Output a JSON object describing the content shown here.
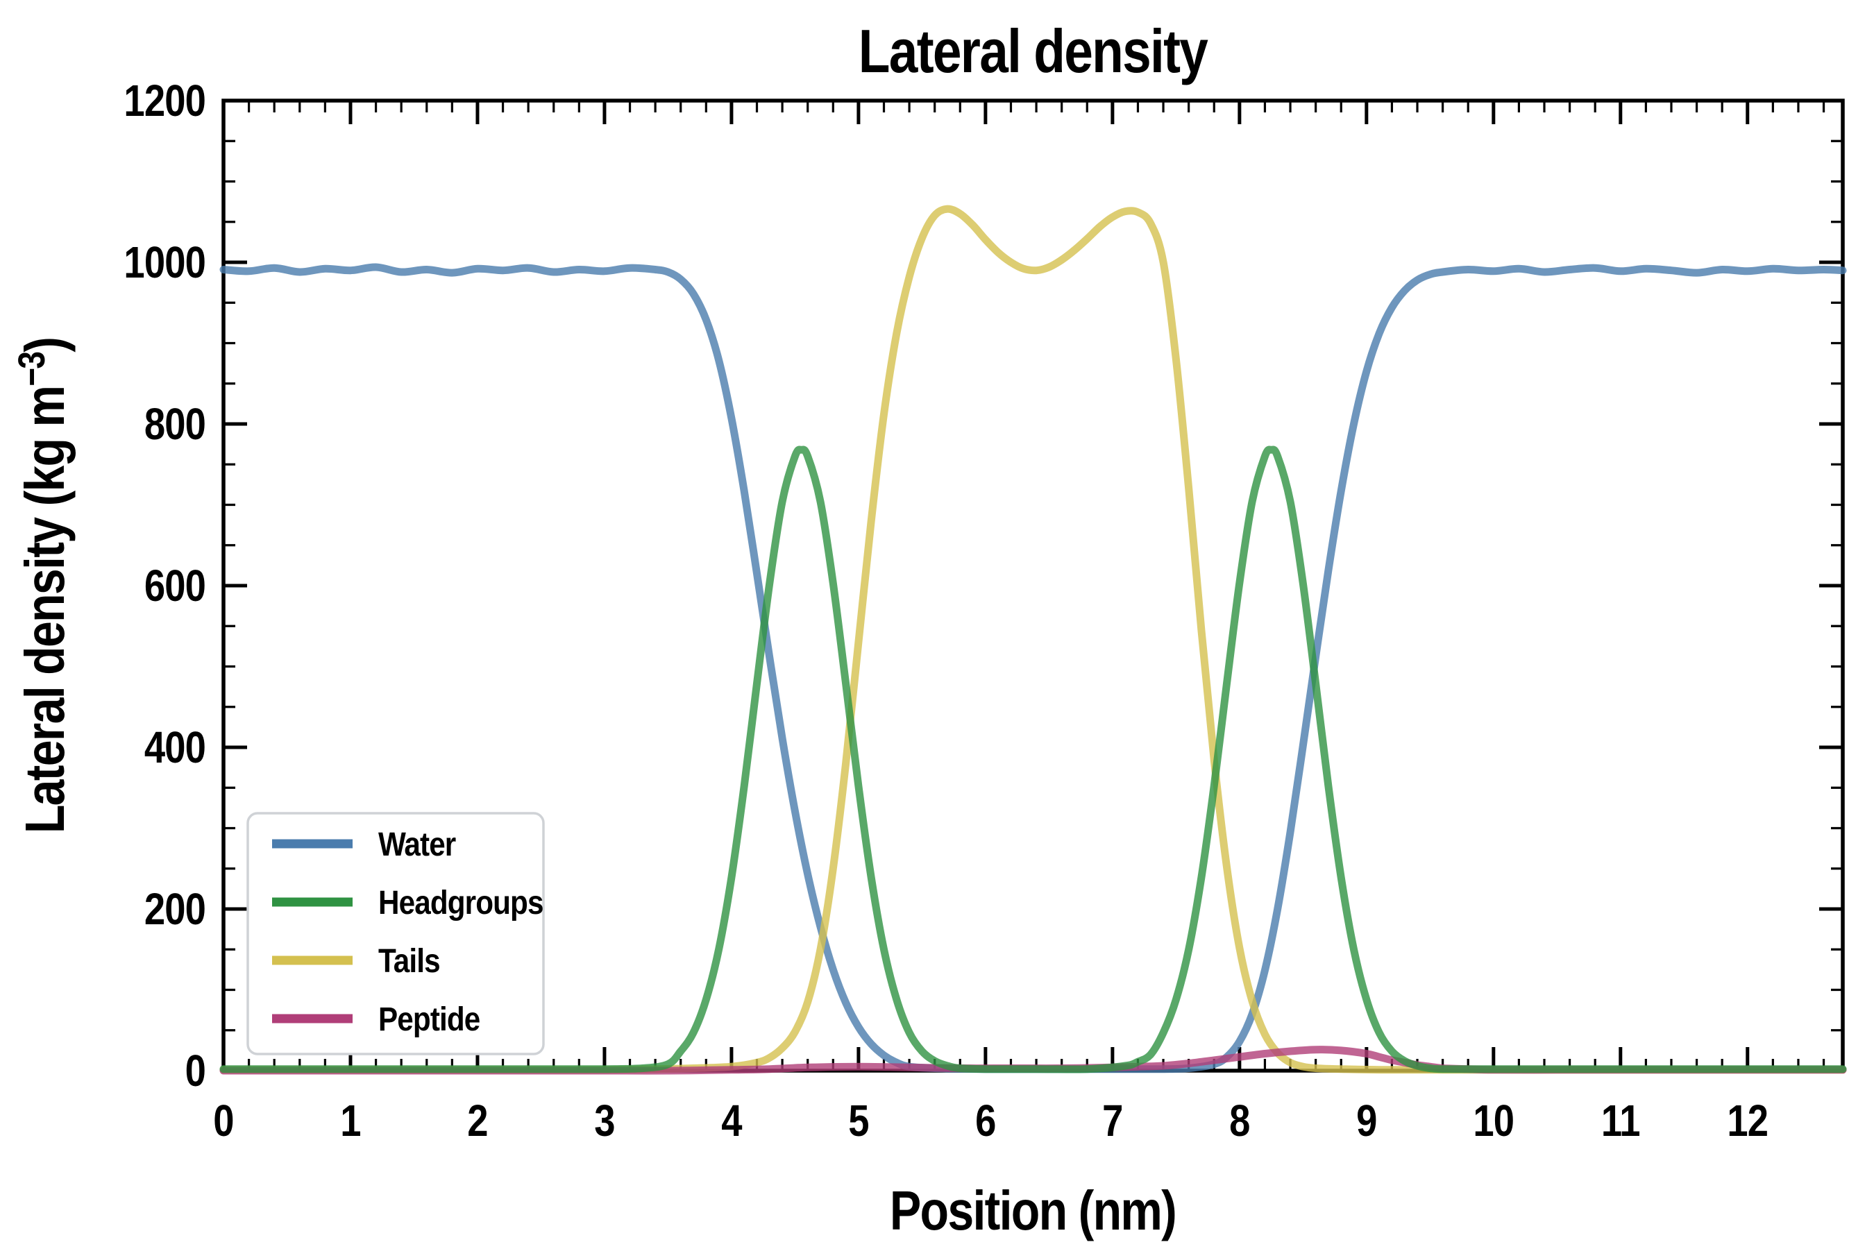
{
  "figure": {
    "background": "#ffffff",
    "frame_color": "#000000",
    "title": "Lateral density"
  },
  "legend": {
    "position": "lower left",
    "border_color": "#cfd2d6",
    "background": "#ffffff",
    "entries": [
      "Water",
      "Headgroups",
      "Tails",
      "Peptide"
    ]
  },
  "chart_data": {
    "type": "line",
    "title": "Lateral density",
    "xlabel": "Position (nm)",
    "ylabel": "Lateral density (kg m⁻³)",
    "ylabel_rich": {
      "pre": "Lateral density (kg m",
      "sup": "−3",
      "post": ")"
    },
    "xlim": [
      0,
      12.75
    ],
    "ylim": [
      0,
      1200
    ],
    "x_major_ticks": [
      0,
      1,
      2,
      3,
      4,
      5,
      6,
      7,
      8,
      9,
      10,
      11,
      12
    ],
    "x_minor_step": 0.2,
    "y_major_ticks": [
      0,
      200,
      400,
      600,
      800,
      1000,
      1200
    ],
    "y_minor_step": 50,
    "grid": false,
    "ticks_mirrored_all_spines": true,
    "line_opacity": 0.8,
    "draw_order": [
      "water",
      "tails",
      "peptide",
      "headgroups"
    ],
    "series": [
      {
        "id": "water",
        "name": "Water",
        "color": "#4a7cad",
        "points": [
          [
            0,
            991
          ],
          [
            0.2,
            989
          ],
          [
            0.4,
            993
          ],
          [
            0.6,
            988
          ],
          [
            0.8,
            992
          ],
          [
            1,
            990
          ],
          [
            1.2,
            994
          ],
          [
            1.4,
            988
          ],
          [
            1.6,
            991
          ],
          [
            1.8,
            987
          ],
          [
            2,
            992
          ],
          [
            2.2,
            990
          ],
          [
            2.4,
            993
          ],
          [
            2.6,
            988
          ],
          [
            2.8,
            991
          ],
          [
            3,
            989
          ],
          [
            3.2,
            993
          ],
          [
            3.4,
            991
          ],
          [
            3.5,
            988
          ],
          [
            3.6,
            979
          ],
          [
            3.7,
            961
          ],
          [
            3.8,
            929
          ],
          [
            3.9,
            879
          ],
          [
            4,
            807
          ],
          [
            4.1,
            717
          ],
          [
            4.2,
            615
          ],
          [
            4.3,
            511
          ],
          [
            4.4,
            411
          ],
          [
            4.5,
            321
          ],
          [
            4.6,
            243
          ],
          [
            4.7,
            178
          ],
          [
            4.8,
            125
          ],
          [
            4.9,
            84
          ],
          [
            5,
            54
          ],
          [
            5.1,
            33
          ],
          [
            5.2,
            19
          ],
          [
            5.3,
            10
          ],
          [
            5.4,
            5
          ],
          [
            5.6,
            3
          ],
          [
            6,
            2
          ],
          [
            6.5,
            2
          ],
          [
            7,
            2
          ],
          [
            7.4,
            2
          ],
          [
            7.6,
            3
          ],
          [
            7.8,
            8
          ],
          [
            7.9,
            17
          ],
          [
            8,
            36
          ],
          [
            8.1,
            70
          ],
          [
            8.2,
            124
          ],
          [
            8.3,
            200
          ],
          [
            8.4,
            295
          ],
          [
            8.5,
            402
          ],
          [
            8.6,
            512
          ],
          [
            8.7,
            619
          ],
          [
            8.8,
            717
          ],
          [
            8.9,
            800
          ],
          [
            9,
            865
          ],
          [
            9.1,
            912
          ],
          [
            9.2,
            944
          ],
          [
            9.3,
            965
          ],
          [
            9.4,
            978
          ],
          [
            9.5,
            985
          ],
          [
            9.6,
            988
          ],
          [
            9.8,
            991
          ],
          [
            10,
            989
          ],
          [
            10.2,
            992
          ],
          [
            10.4,
            988
          ],
          [
            10.6,
            991
          ],
          [
            10.8,
            993
          ],
          [
            11,
            989
          ],
          [
            11.2,
            992
          ],
          [
            11.4,
            990
          ],
          [
            11.6,
            987
          ],
          [
            11.8,
            991
          ],
          [
            12,
            989
          ],
          [
            12.2,
            992
          ],
          [
            12.4,
            990
          ],
          [
            12.6,
            991
          ],
          [
            12.75,
            990
          ]
        ]
      },
      {
        "id": "headgroups",
        "name": "Headgroups",
        "color": "#2f9242",
        "points": [
          [
            0,
            2
          ],
          [
            0.5,
            2
          ],
          [
            1,
            2
          ],
          [
            1.5,
            2
          ],
          [
            2,
            2
          ],
          [
            2.5,
            2
          ],
          [
            3,
            2
          ],
          [
            3.3,
            3
          ],
          [
            3.5,
            8
          ],
          [
            3.6,
            24
          ],
          [
            3.7,
            47
          ],
          [
            3.8,
            88
          ],
          [
            3.9,
            150
          ],
          [
            4,
            239
          ],
          [
            4.1,
            352
          ],
          [
            4.2,
            479
          ],
          [
            4.3,
            603
          ],
          [
            4.4,
            704
          ],
          [
            4.5,
            760
          ],
          [
            4.55,
            768
          ],
          [
            4.6,
            760
          ],
          [
            4.7,
            704
          ],
          [
            4.8,
            603
          ],
          [
            4.9,
            479
          ],
          [
            5,
            352
          ],
          [
            5.1,
            239
          ],
          [
            5.2,
            150
          ],
          [
            5.3,
            88
          ],
          [
            5.4,
            47
          ],
          [
            5.5,
            24
          ],
          [
            5.6,
            12
          ],
          [
            5.7,
            6
          ],
          [
            5.8,
            3
          ],
          [
            6,
            2
          ],
          [
            6.4,
            2
          ],
          [
            6.8,
            2
          ],
          [
            7.1,
            6
          ],
          [
            7.2,
            11
          ],
          [
            7.3,
            20
          ],
          [
            7.4,
            47
          ],
          [
            7.5,
            88
          ],
          [
            7.6,
            150
          ],
          [
            7.7,
            239
          ],
          [
            7.8,
            352
          ],
          [
            7.9,
            479
          ],
          [
            8,
            603
          ],
          [
            8.1,
            704
          ],
          [
            8.2,
            760
          ],
          [
            8.25,
            768
          ],
          [
            8.3,
            760
          ],
          [
            8.4,
            704
          ],
          [
            8.5,
            603
          ],
          [
            8.6,
            479
          ],
          [
            8.7,
            352
          ],
          [
            8.8,
            239
          ],
          [
            8.9,
            150
          ],
          [
            9,
            88
          ],
          [
            9.1,
            47
          ],
          [
            9.2,
            24
          ],
          [
            9.3,
            12
          ],
          [
            9.4,
            6
          ],
          [
            9.5,
            3
          ],
          [
            9.6,
            2
          ],
          [
            10,
            2
          ],
          [
            10.5,
            2
          ],
          [
            11,
            2
          ],
          [
            11.5,
            2
          ],
          [
            12,
            2
          ],
          [
            12.5,
            2
          ],
          [
            12.75,
            2
          ]
        ]
      },
      {
        "id": "tails",
        "name": "Tails",
        "color": "#d4c04f",
        "points": [
          [
            0,
            1
          ],
          [
            0.5,
            1
          ],
          [
            1,
            1
          ],
          [
            1.5,
            1
          ],
          [
            2,
            1
          ],
          [
            2.5,
            1
          ],
          [
            3,
            1
          ],
          [
            3.4,
            2
          ],
          [
            3.7,
            3
          ],
          [
            4,
            5
          ],
          [
            4.2,
            10
          ],
          [
            4.3,
            16
          ],
          [
            4.4,
            28
          ],
          [
            4.5,
            48
          ],
          [
            4.6,
            85
          ],
          [
            4.7,
            150
          ],
          [
            4.8,
            250
          ],
          [
            4.9,
            380
          ],
          [
            5,
            530
          ],
          [
            5.1,
            680
          ],
          [
            5.2,
            812
          ],
          [
            5.3,
            912
          ],
          [
            5.4,
            982
          ],
          [
            5.5,
            1030
          ],
          [
            5.6,
            1058
          ],
          [
            5.7,
            1066
          ],
          [
            5.8,
            1060
          ],
          [
            5.9,
            1046
          ],
          [
            6,
            1028
          ],
          [
            6.1,
            1012
          ],
          [
            6.2,
            1000
          ],
          [
            6.3,
            992
          ],
          [
            6.4,
            990
          ],
          [
            6.5,
            994
          ],
          [
            6.6,
            1003
          ],
          [
            6.7,
            1015
          ],
          [
            6.8,
            1029
          ],
          [
            6.9,
            1044
          ],
          [
            7,
            1056
          ],
          [
            7.1,
            1063
          ],
          [
            7.2,
            1062
          ],
          [
            7.3,
            1048
          ],
          [
            7.4,
            1000
          ],
          [
            7.5,
            880
          ],
          [
            7.6,
            720
          ],
          [
            7.7,
            545
          ],
          [
            7.8,
            385
          ],
          [
            7.9,
            252
          ],
          [
            8,
            152
          ],
          [
            8.1,
            86
          ],
          [
            8.2,
            45
          ],
          [
            8.3,
            22
          ],
          [
            8.4,
            10
          ],
          [
            8.5,
            5
          ],
          [
            8.6,
            3
          ],
          [
            8.8,
            2
          ],
          [
            9.2,
            1
          ],
          [
            10,
            1
          ],
          [
            11,
            1
          ],
          [
            12,
            1
          ],
          [
            12.75,
            1
          ]
        ]
      },
      {
        "id": "peptide",
        "name": "Peptide",
        "color": "#b03e78",
        "points": [
          [
            0,
            0
          ],
          [
            0.5,
            0
          ],
          [
            1,
            0
          ],
          [
            1.5,
            0
          ],
          [
            2,
            0
          ],
          [
            2.5,
            0
          ],
          [
            3,
            0
          ],
          [
            3.5,
            0
          ],
          [
            4,
            1
          ],
          [
            4.3,
            2
          ],
          [
            4.6,
            4
          ],
          [
            5,
            5
          ],
          [
            5.4,
            4
          ],
          [
            5.8,
            3
          ],
          [
            6.2,
            3
          ],
          [
            6.6,
            3
          ],
          [
            7,
            4
          ],
          [
            7.2,
            5
          ],
          [
            7.4,
            6
          ],
          [
            7.6,
            9
          ],
          [
            7.8,
            13
          ],
          [
            8,
            17
          ],
          [
            8.2,
            21
          ],
          [
            8.4,
            24
          ],
          [
            8.6,
            26
          ],
          [
            8.8,
            25
          ],
          [
            9,
            21
          ],
          [
            9.1,
            17
          ],
          [
            9.2,
            13
          ],
          [
            9.3,
            10
          ],
          [
            9.4,
            7
          ],
          [
            9.5,
            5
          ],
          [
            9.6,
            3
          ],
          [
            9.8,
            2
          ],
          [
            10,
            1
          ],
          [
            10.5,
            1
          ],
          [
            11,
            1
          ],
          [
            11.5,
            1
          ],
          [
            12,
            1
          ],
          [
            12.75,
            1
          ]
        ]
      }
    ]
  }
}
